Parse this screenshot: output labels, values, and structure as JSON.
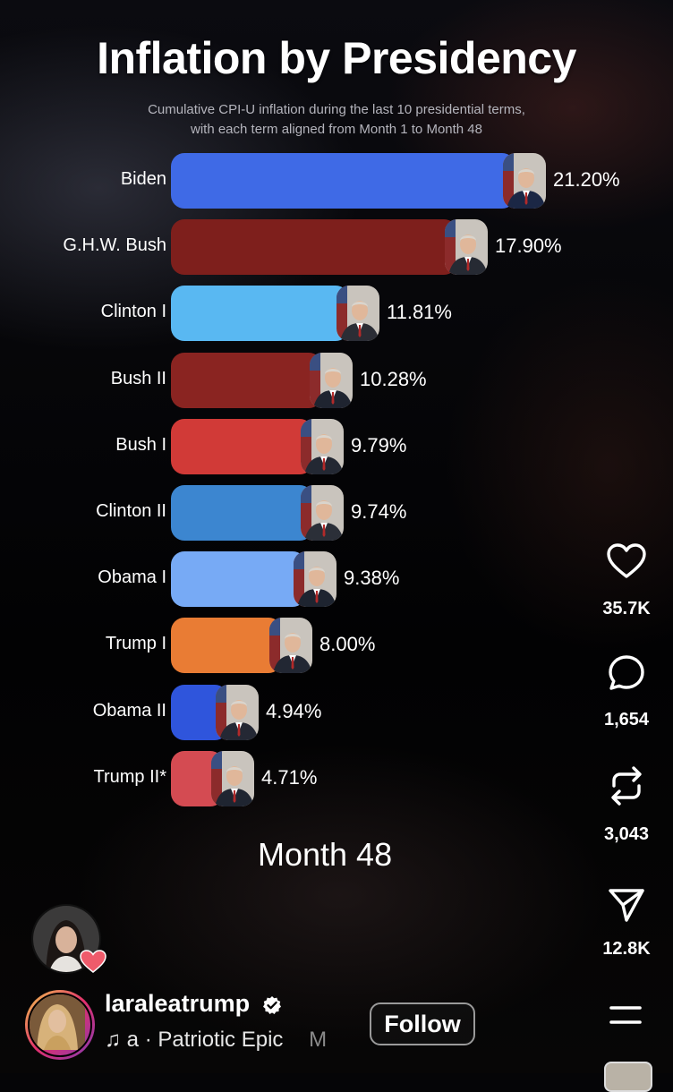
{
  "video": {
    "title": "Inflation by Presidency",
    "subtitle_line1": "Cumulative CPI-U inflation during the last 10 presidential terms,",
    "subtitle_line2": "with each term aligned from Month 1 to Month 48",
    "month_label": "Month 48"
  },
  "chart_data": {
    "type": "bar",
    "orientation": "horizontal",
    "title": "Inflation by Presidency",
    "categories": [
      "Biden",
      "G.H.W. Bush",
      "Clinton I",
      "Bush II",
      "Bush I",
      "Clinton II",
      "Obama I",
      "Trump I",
      "Obama II",
      "Trump II*"
    ],
    "values": [
      21.2,
      17.9,
      11.81,
      10.28,
      9.79,
      9.74,
      9.38,
      8.0,
      4.94,
      4.71
    ],
    "value_labels": [
      "21.20%",
      "17.90%",
      "11.81%",
      "10.28%",
      "9.79%",
      "9.74%",
      "9.38%",
      "8.00%",
      "4.94%",
      "4.71%"
    ],
    "colors": [
      "#3f6ae6",
      "#7e1f1c",
      "#59b8f2",
      "#8a2421",
      "#d13a37",
      "#3c86d0",
      "#77aaf5",
      "#e97c34",
      "#2f55dc",
      "#d44b52"
    ],
    "xlim": [
      0,
      21.2
    ],
    "grid": false,
    "legend": "none"
  },
  "sidebar": {
    "like_count": "35.7K",
    "comment_count": "1,654",
    "repost_count": "3,043",
    "share_count": "12.8K",
    "icons": [
      "heart-icon",
      "comment-icon",
      "repost-icon",
      "send-icon",
      "menu-icon"
    ]
  },
  "footer": {
    "username": "laraleatrump",
    "audio_text": "a · Patriotic Epic",
    "audio_extra": "M",
    "follow_label": "Follow"
  },
  "colors": {
    "background": "#050507",
    "subtitle": "#b4b4bc",
    "verified": "#ffffff"
  }
}
